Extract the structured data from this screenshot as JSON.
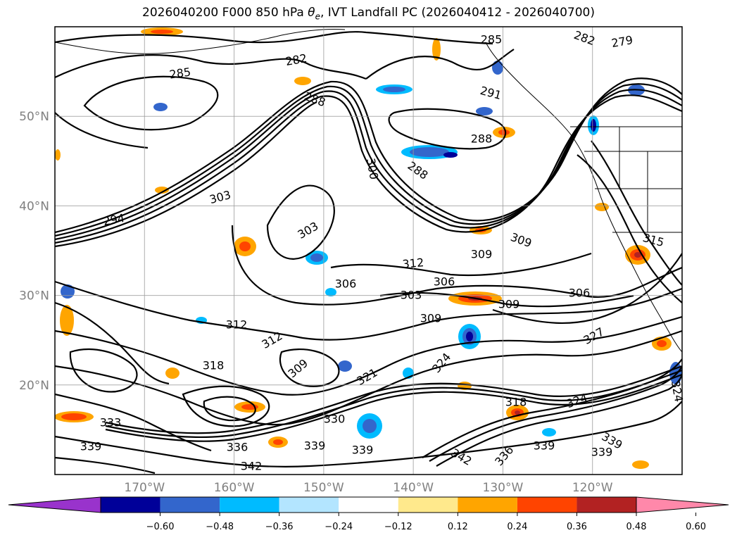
{
  "title": "2026040200 F000 850 hPa θe, IVT Landfall PC (2026040412 - 2026040700)",
  "title_parts": {
    "prefix": "2026040200 F000 850 hPa ",
    "symbol": "θ",
    "subscript": "e",
    "suffix": ", IVT Landfall PC (2026040412 - 2026040700)"
  },
  "map": {
    "lon_range": [
      -180,
      -110
    ],
    "lat_range": [
      10,
      60
    ],
    "lat_labels": [
      "50°N",
      "40°N",
      "30°N",
      "20°N"
    ],
    "lat_values": [
      50,
      40,
      30,
      20
    ],
    "lon_labels": [
      "170°W",
      "160°W",
      "150°W",
      "140°W",
      "130°W",
      "120°W"
    ],
    "lon_values": [
      -170,
      -160,
      -150,
      -140,
      -130,
      -120
    ],
    "grid": true,
    "gridline_color": "#9a9a9a",
    "label_color": "#808080"
  },
  "contour_labels": [
    "285",
    "282",
    "279",
    "285",
    "282",
    "288",
    "291",
    "288",
    "288",
    "300",
    "303",
    "294",
    "303",
    "309",
    "309",
    "312",
    "306",
    "306",
    "303",
    "306",
    "309",
    "315",
    "312",
    "309",
    "312",
    "309",
    "321",
    "318",
    "324",
    "324",
    "330",
    "336",
    "339",
    "339",
    "342",
    "339",
    "342",
    "336",
    "339",
    "339",
    "333",
    "339",
    "318",
    "324",
    "327"
  ],
  "colorbar": {
    "ticks": [
      "−0.60",
      "−0.48",
      "−0.36",
      "−0.24",
      "−0.12",
      "0.12",
      "0.24",
      "0.36",
      "0.48",
      "0.60"
    ],
    "tick_values": [
      -0.6,
      -0.48,
      -0.36,
      -0.24,
      -0.12,
      0.12,
      0.24,
      0.36,
      0.48,
      0.6
    ],
    "colors": [
      "#9933cc",
      "#000099",
      "#3366cc",
      "#00bbff",
      "#b3e5ff",
      "#ffffff",
      "#ffe98c",
      "#ffa500",
      "#ff4400",
      "#b22222",
      "#ff88aa"
    ],
    "extend": "both"
  }
}
